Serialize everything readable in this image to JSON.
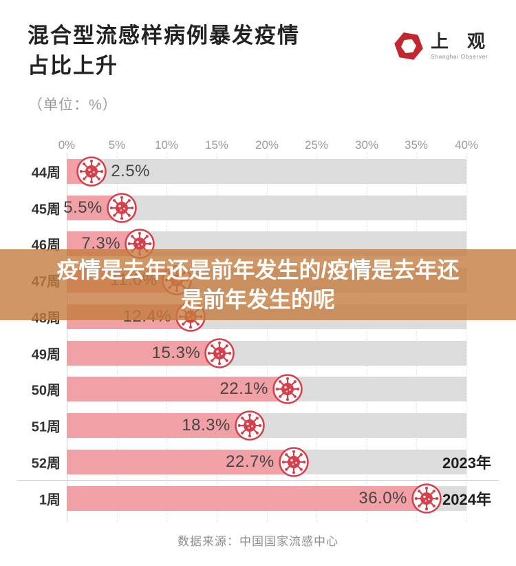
{
  "header": {
    "title_line1": "混合型流感样病例暴发疫情",
    "title_line2": "占比上升",
    "unit": "（单位：%）",
    "logo": {
      "cn": "上 观",
      "en": "Shanghai Observer",
      "red": "#c2272f"
    }
  },
  "overlay_banner": {
    "line1": "疫情是去年还是前年发生的/疫情是去年还",
    "line2": "是前年发生的呢",
    "bg_color": "#c67c3f"
  },
  "chart_data": {
    "type": "bar",
    "orientation": "horizontal",
    "title": "混合型流感样病例暴发疫情占比上升",
    "unit": "%",
    "categories": [
      "44周",
      "45周",
      "46周",
      "47周",
      "48周",
      "49周",
      "50周",
      "51周",
      "52周",
      "1周"
    ],
    "values": [
      2.5,
      5.5,
      7.3,
      11.0,
      12.4,
      15.3,
      22.1,
      18.3,
      22.7,
      36.0
    ],
    "value_labels": [
      "2.5%",
      "5.5%",
      "7.3%",
      "11.0%",
      "12.4%",
      "15.3%",
      "22.1%",
      "18.3%",
      "22.7%",
      "36.0%"
    ],
    "x_ticks": [
      "0%",
      "5%",
      "10%",
      "15%",
      "20%",
      "25%",
      "30%",
      "35%",
      "40%"
    ],
    "xlim": [
      0,
      40
    ],
    "grid": "dashed-vertical",
    "legend": "none",
    "year_markers": {
      "row_52": "2023年",
      "row_1": "2024年"
    },
    "colors": {
      "bar_fill": "#f1a0a6",
      "track": "#dcdcdc",
      "virus_red": "#d5404d",
      "label_text": "#454545"
    }
  },
  "footer": {
    "source": "数据来源：中国国家流感中心"
  }
}
